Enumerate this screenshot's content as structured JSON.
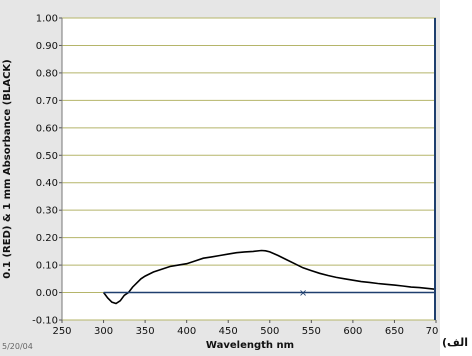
{
  "panel_label": "الف)",
  "footnote": "5/20/04",
  "chart_data": {
    "type": "line",
    "title": "",
    "xlabel": "Wavelength nm",
    "ylabel": "0.1 (RED) & 1 mm Absorbance (BLACK)",
    "xlim": [
      250,
      700
    ],
    "ylim": [
      -0.1,
      1.0
    ],
    "x_ticks": [
      "250",
      "300",
      "350",
      "400",
      "450",
      "500",
      "550",
      "600",
      "650",
      "70"
    ],
    "y_ticks": [
      "-0.10",
      "0.00",
      "0.10",
      "0.20",
      "0.30",
      "0.40",
      "0.50",
      "0.60",
      "0.70",
      "0.80",
      "0.90",
      "1.00"
    ],
    "grid": true,
    "colors": {
      "background": "#ffffff",
      "frame": "#e6e6e6",
      "grid": "#b5b56a",
      "series_black": "#000000",
      "series_red": "#1f3f6e",
      "cursor": "#1f3f6e"
    },
    "series": [
      {
        "color": "black",
        "x": [
          300,
          305,
          310,
          315,
          320,
          325,
          330,
          335,
          340,
          345,
          350,
          360,
          370,
          380,
          390,
          400,
          410,
          420,
          430,
          440,
          450,
          460,
          470,
          480,
          490,
          495,
          500,
          510,
          520,
          530,
          540,
          550,
          560,
          570,
          580,
          590,
          600,
          610,
          620,
          630,
          640,
          650,
          660,
          670,
          680,
          690,
          700
        ],
        "y": [
          0.0,
          -0.02,
          -0.035,
          -0.04,
          -0.03,
          -0.01,
          0.0,
          0.02,
          0.035,
          0.05,
          0.06,
          0.075,
          0.085,
          0.095,
          0.1,
          0.105,
          0.115,
          0.125,
          0.13,
          0.135,
          0.14,
          0.145,
          0.148,
          0.15,
          0.153,
          0.152,
          0.148,
          0.135,
          0.12,
          0.105,
          0.09,
          0.08,
          0.07,
          0.062,
          0.055,
          0.05,
          0.045,
          0.04,
          0.037,
          0.033,
          0.03,
          0.027,
          0.024,
          0.02,
          0.018,
          0.015,
          0.012
        ]
      },
      {
        "color": "red",
        "x": [
          300,
          700
        ],
        "y": [
          0.0,
          0.0
        ]
      }
    ],
    "cursors": [
      {
        "x": 540,
        "y": 0.0,
        "marker": "×"
      }
    ]
  }
}
